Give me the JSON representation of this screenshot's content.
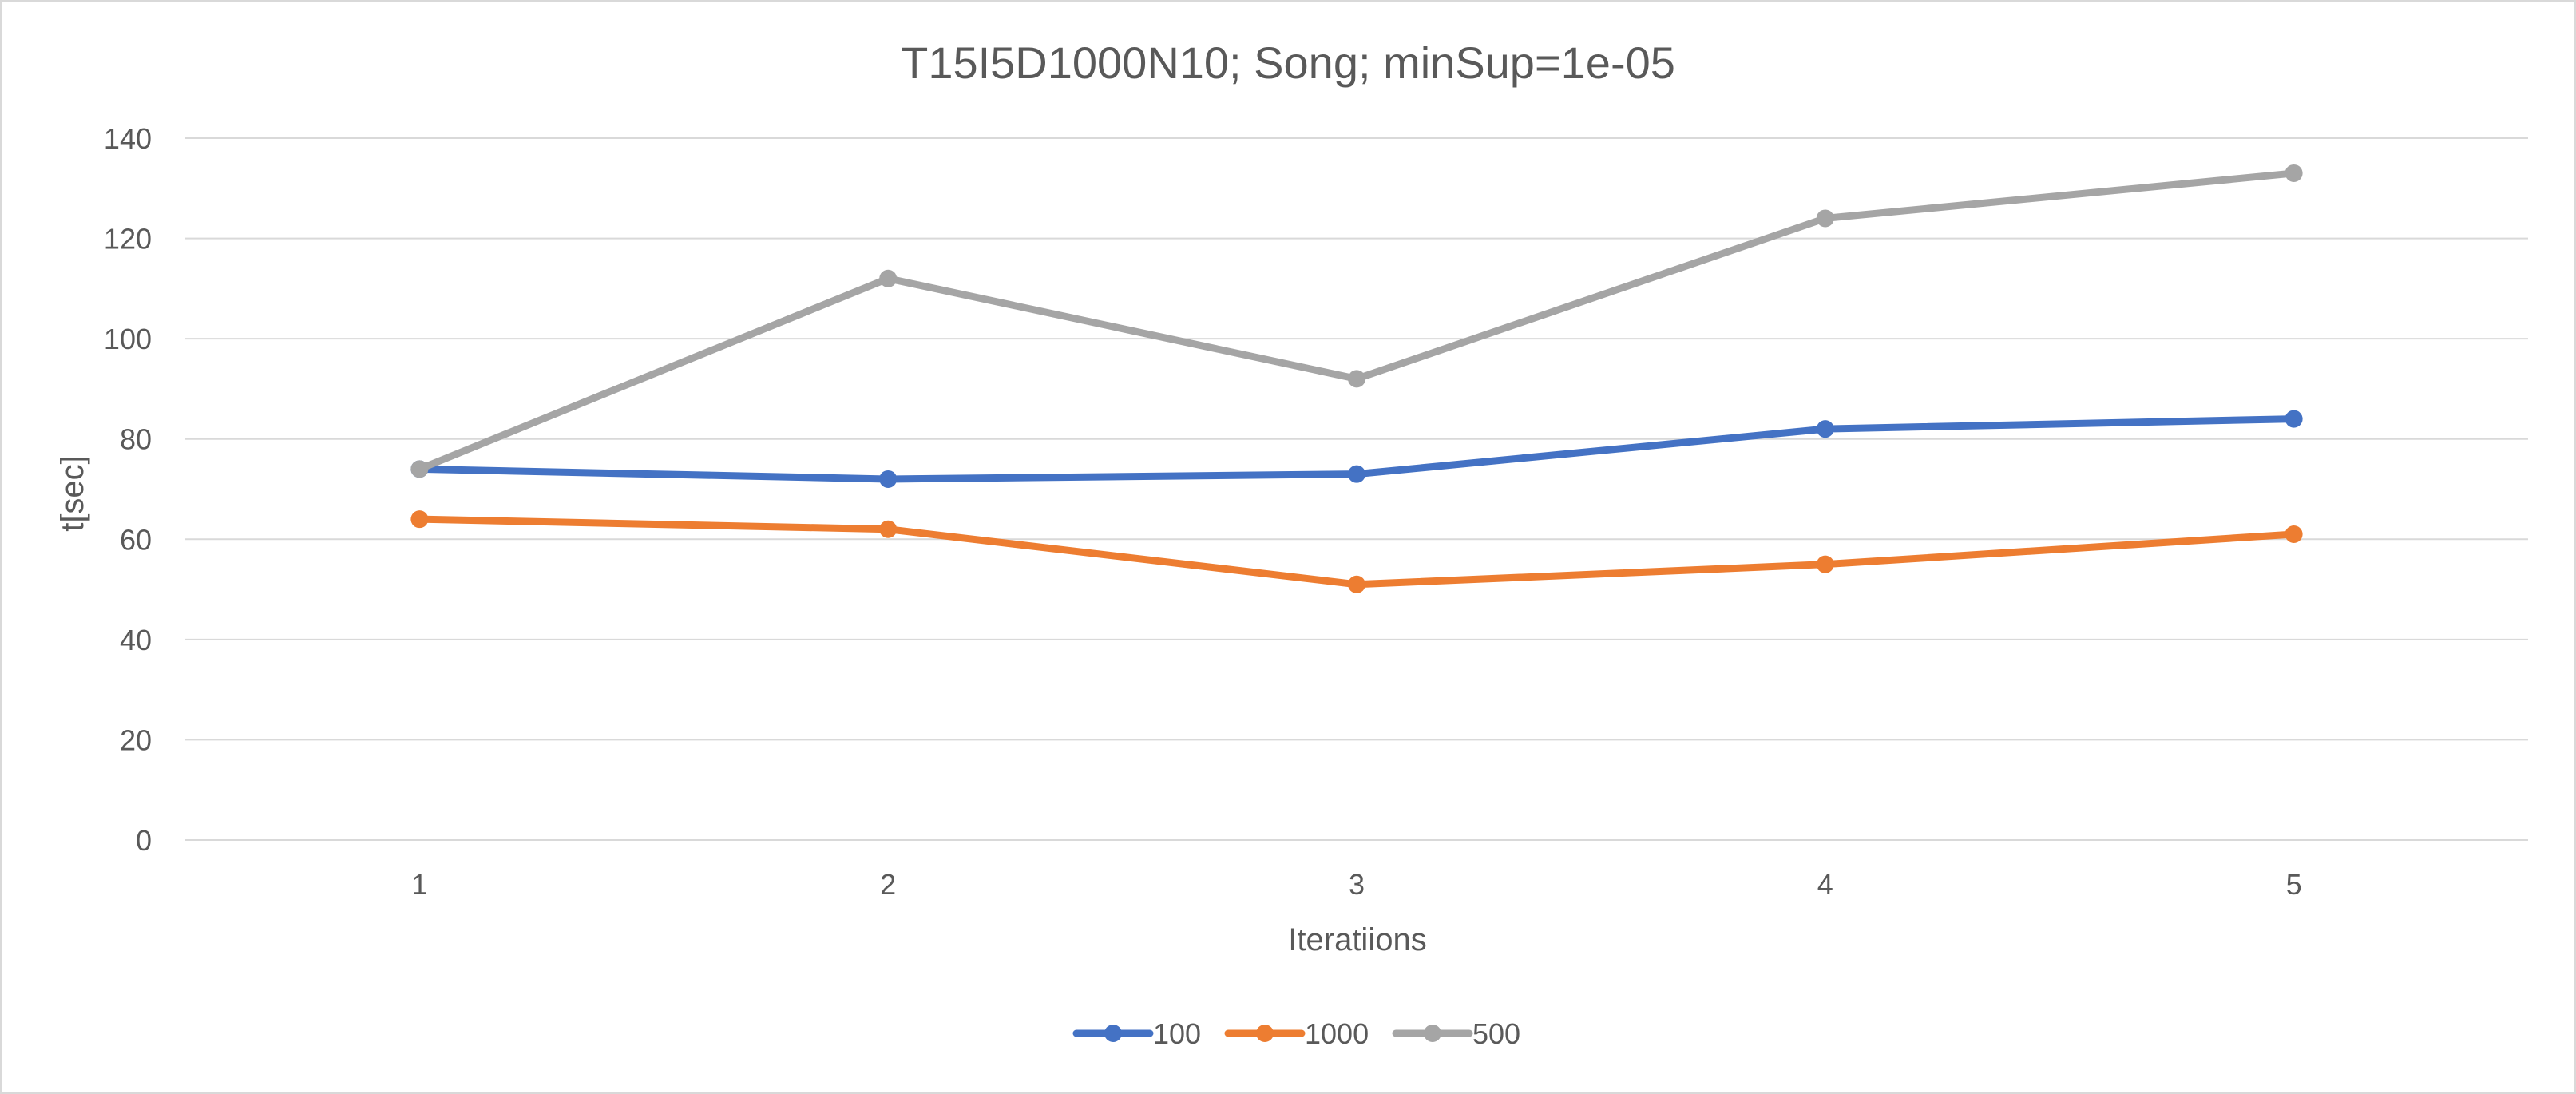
{
  "chart_data": {
    "type": "line",
    "title": "T15I5D1000N10; Song; minSup=1e-05",
    "xlabel": "Iteratiions",
    "ylabel": "t[sec]",
    "categories": [
      "1",
      "2",
      "3",
      "4",
      "5"
    ],
    "ylim": [
      0,
      140
    ],
    "yticks": [
      "0",
      "20",
      "40",
      "60",
      "80",
      "100",
      "120",
      "140"
    ],
    "grid": true,
    "legend_position": "bottom",
    "series": [
      {
        "name": "100",
        "color": "#4472c4",
        "values": [
          74,
          72,
          73,
          82,
          84
        ]
      },
      {
        "name": "1000",
        "color": "#ed7d31",
        "values": [
          64,
          62,
          51,
          55,
          61
        ]
      },
      {
        "name": "500",
        "color": "#a5a5a5",
        "values": [
          74,
          112,
          92,
          124,
          133
        ]
      }
    ]
  }
}
